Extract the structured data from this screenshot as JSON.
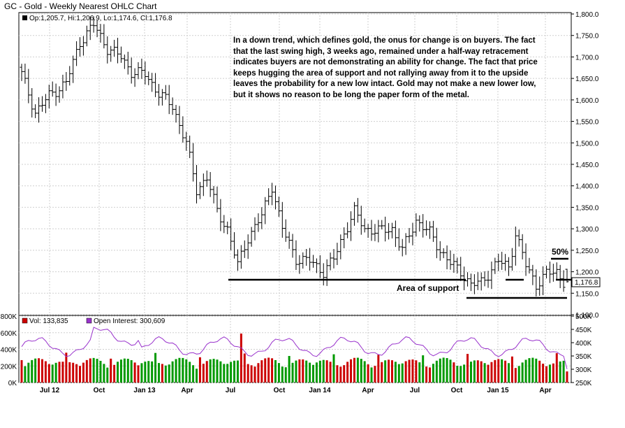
{
  "title": "GC - Gold - Weekly Nearest OHLC Chart",
  "price_legend": "Op:1,205.7, Hi:1,206.9, Lo:1,174.6, Cl:1,176.8",
  "last_price_label": "1,176.8",
  "volume_legend": {
    "vol": "Vol: 133,835",
    "oi": "Open Interest: 300,609"
  },
  "annotation": "In a down trend, which defines gold, the onus for change is on buyers.  The fact that the last swing high, 3 weeks ago, remained under a half-way retracement indicates buyers are not demonstrating an ability for change.  The fact that price keeps hugging the area of support and not rallying away from it to the upside leaves the probability for  a new low intact.  Gold may not make a new lower low, but it shows no reason to be long the paper form of the metal.",
  "support_label": "Area of support",
  "fifty_label": "50%",
  "colors": {
    "up": "#cc0000",
    "down": "#009900",
    "oi": "#9933cc",
    "line": "#000000",
    "grid": "#c8c8c8"
  },
  "chart_data": {
    "type": "ohlc",
    "price_axis": {
      "min": 1100,
      "max": 1800,
      "ticks": [
        "1,800.0",
        "1,750.0",
        "1,700.0",
        "1,650.0",
        "1,600.0",
        "1,550.0",
        "1,500.0",
        "1,450.0",
        "1,400.0",
        "1,350.0",
        "1,300.0",
        "1,250.0",
        "1,200.0",
        "1,150.0",
        "1,100.0"
      ]
    },
    "volume_axis_left": {
      "min": 0,
      "max": 800000,
      "ticks": [
        "800K",
        "600K",
        "400K",
        "200K",
        "0K"
      ]
    },
    "oi_axis_right": {
      "min": 250000,
      "max": 500000,
      "ticks": [
        "500K",
        "450K",
        "400K",
        "350K",
        "300K",
        "250K"
      ]
    },
    "x_ticks": [
      "Jul 12",
      "Oct",
      "Jan 13",
      "Apr",
      "Jul",
      "Oct",
      "Jan 14",
      "Apr",
      "Jul",
      "Oct",
      "Jan 15",
      "Apr"
    ],
    "close_anchors": [
      [
        0,
        1660
      ],
      [
        4,
        1570
      ],
      [
        8,
        1610
      ],
      [
        13,
        1640
      ],
      [
        17,
        1735
      ],
      [
        21,
        1775
      ],
      [
        25,
        1720
      ],
      [
        29,
        1700
      ],
      [
        32,
        1665
      ],
      [
        36,
        1660
      ],
      [
        40,
        1615
      ],
      [
        44,
        1585
      ],
      [
        48,
        1500
      ],
      [
        51,
        1390
      ],
      [
        54,
        1420
      ],
      [
        57,
        1340
      ],
      [
        60,
        1300
      ],
      [
        63,
        1215
      ],
      [
        66,
        1280
      ],
      [
        70,
        1330
      ],
      [
        73,
        1400
      ],
      [
        76,
        1300
      ],
      [
        80,
        1230
      ],
      [
        84,
        1225
      ],
      [
        88,
        1200
      ],
      [
        91,
        1230
      ],
      [
        94,
        1290
      ],
      [
        97,
        1340
      ],
      [
        100,
        1300
      ],
      [
        104,
        1295
      ],
      [
        108,
        1300
      ],
      [
        111,
        1250
      ],
      [
        115,
        1320
      ],
      [
        119,
        1290
      ],
      [
        122,
        1250
      ],
      [
        125,
        1220
      ],
      [
        128,
        1200
      ],
      [
        131,
        1170
      ],
      [
        134,
        1175
      ],
      [
        136,
        1195
      ],
      [
        139,
        1225
      ],
      [
        142,
        1210
      ],
      [
        144,
        1290
      ],
      [
        147,
        1215
      ],
      [
        150,
        1170
      ],
      [
        153,
        1195
      ],
      [
        156,
        1200
      ],
      [
        158,
        1176.8
      ]
    ],
    "ohlc_last": {
      "open": 1205.7,
      "high": 1206.9,
      "low": 1174.6,
      "close": 1176.8
    },
    "support_level": 1183,
    "support_level_2": 1150,
    "fifty_pct_level": 1231
  }
}
